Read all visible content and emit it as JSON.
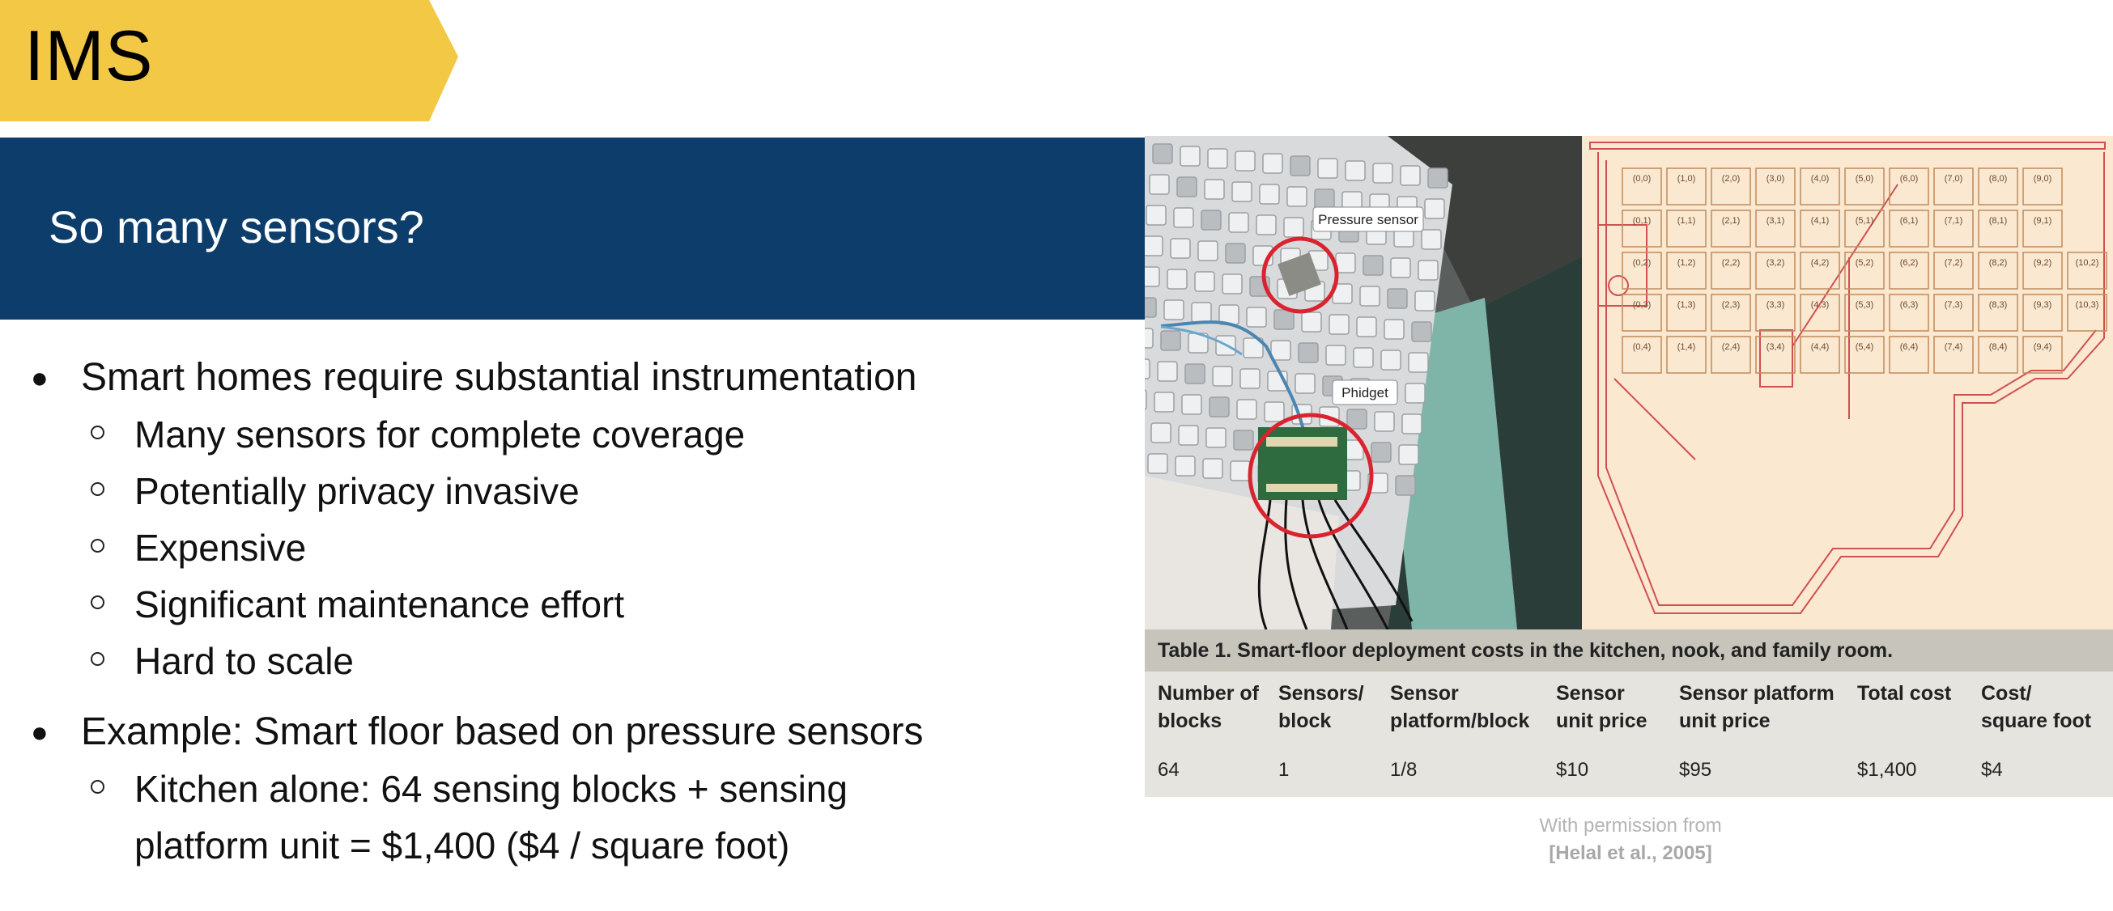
{
  "header": {
    "tag": "IMS",
    "title": "So many sensors?"
  },
  "bullets": [
    {
      "text": "Smart homes require substantial instrumentation",
      "sub": [
        "Many sensors for complete coverage",
        "Potentially privacy invasive",
        "Expensive",
        "Significant maintenance effort",
        "Hard to scale"
      ]
    },
    {
      "text": "Example: Smart floor based on pressure sensors",
      "sub": [
        "Kitchen alone: 64 sensing blocks + sensing",
        "platform unit = $1,400 ($4 / square foot)"
      ]
    }
  ],
  "photo": {
    "label_sensor": "Pressure sensor",
    "label_phidget": "Phidget"
  },
  "floorplan": {
    "cells": [
      "(0,0)",
      "(1,0)",
      "(2,0)",
      "(3,0)",
      "(4,0)",
      "(5,0)",
      "(6,0)",
      "(7,0)",
      "(8,0)",
      "(9,0)",
      "(0,1)",
      "(1,1)",
      "(2,1)",
      "(3,1)",
      "(4,1)",
      "(5,1)",
      "(6,1)",
      "(7,1)",
      "(8,1)",
      "(9,1)",
      "(0,2)",
      "(1,2)",
      "(2,2)",
      "(3,2)",
      "(4,2)",
      "(5,2)",
      "(6,2)",
      "(7,2)",
      "(8,2)",
      "(9,2)",
      "(10,2)",
      "(0,3)",
      "(1,3)",
      "(2,3)",
      "(3,3)",
      "(4,3)",
      "(5,3)",
      "(6,3)",
      "(7,3)",
      "(8,3)",
      "(9,3)",
      "(10,3)",
      "(0,4)",
      "(1,4)",
      "(2,4)",
      "(3,4)",
      "(4,4)",
      "(5,4)",
      "(6,4)",
      "(7,4)",
      "(8,4)",
      "(9,4)"
    ]
  },
  "table": {
    "caption": "Table 1. Smart-floor deployment costs in the kitchen, nook, and family room.",
    "headers": [
      [
        "Number of",
        "blocks"
      ],
      [
        "Sensors/",
        "block"
      ],
      [
        "Sensor",
        "platform/block"
      ],
      [
        "Sensor",
        "unit price"
      ],
      [
        "Sensor platform",
        "unit price"
      ],
      [
        "",
        "Total cost"
      ],
      [
        "Cost/",
        "square foot"
      ]
    ],
    "row": [
      "64",
      "1",
      "1/8",
      "$10",
      "$95",
      "$1,400",
      "$4"
    ]
  },
  "credit": {
    "line1": "With permission from",
    "line2": "[Helal et al., 2005]"
  },
  "colors": {
    "tag": "#f3c845",
    "banner": "#0d3d6b"
  }
}
